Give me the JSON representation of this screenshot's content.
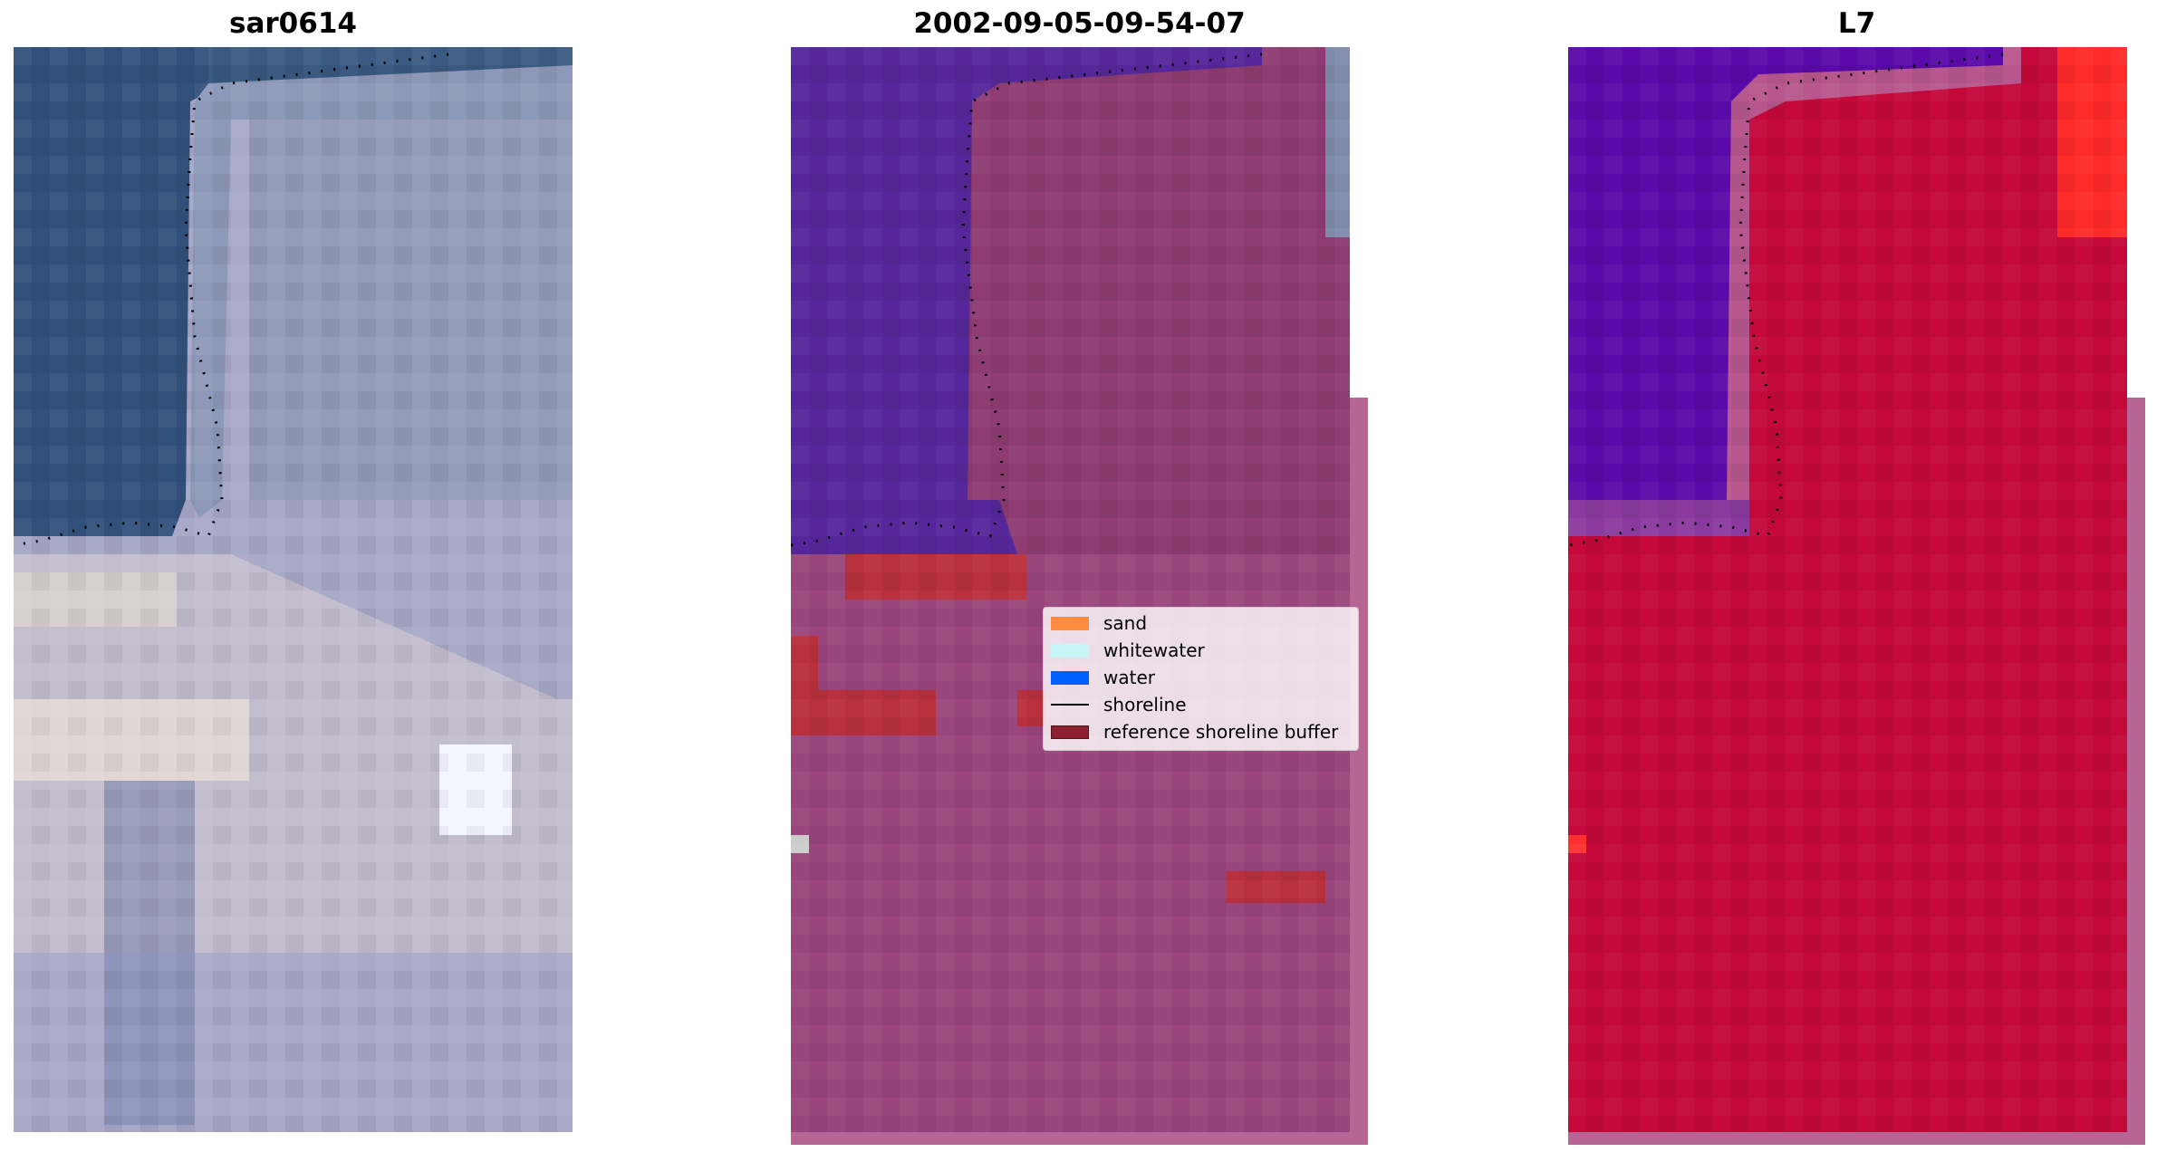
{
  "panels": [
    {
      "title": "sar0614"
    },
    {
      "title": "2002-09-05-09-54-07"
    },
    {
      "title": "L7"
    }
  ],
  "legend": {
    "items": [
      {
        "label": "sand",
        "color": "#ff8c40",
        "kind": "patch"
      },
      {
        "label": "whitewater",
        "color": "#c8f5f8",
        "kind": "patch"
      },
      {
        "label": "water",
        "color": "#0060ff",
        "kind": "patch"
      },
      {
        "label": "shoreline",
        "color": "#000000",
        "kind": "line"
      },
      {
        "label": "reference shoreline buffer",
        "color": "#8b2030",
        "kind": "patch"
      }
    ]
  },
  "colors": {
    "rgb_water": "#30507a",
    "rgb_land": "#a8a8c6",
    "rgb_beach": "#d8cfd0",
    "class_water_overlay": "#55279a",
    "class_land_overlay": "#8e3c72",
    "buffer_fill": "#b86596",
    "index_water": "#5a0aa8",
    "index_land": "#c4083a",
    "reference_buffer_red": "#b8303c"
  }
}
